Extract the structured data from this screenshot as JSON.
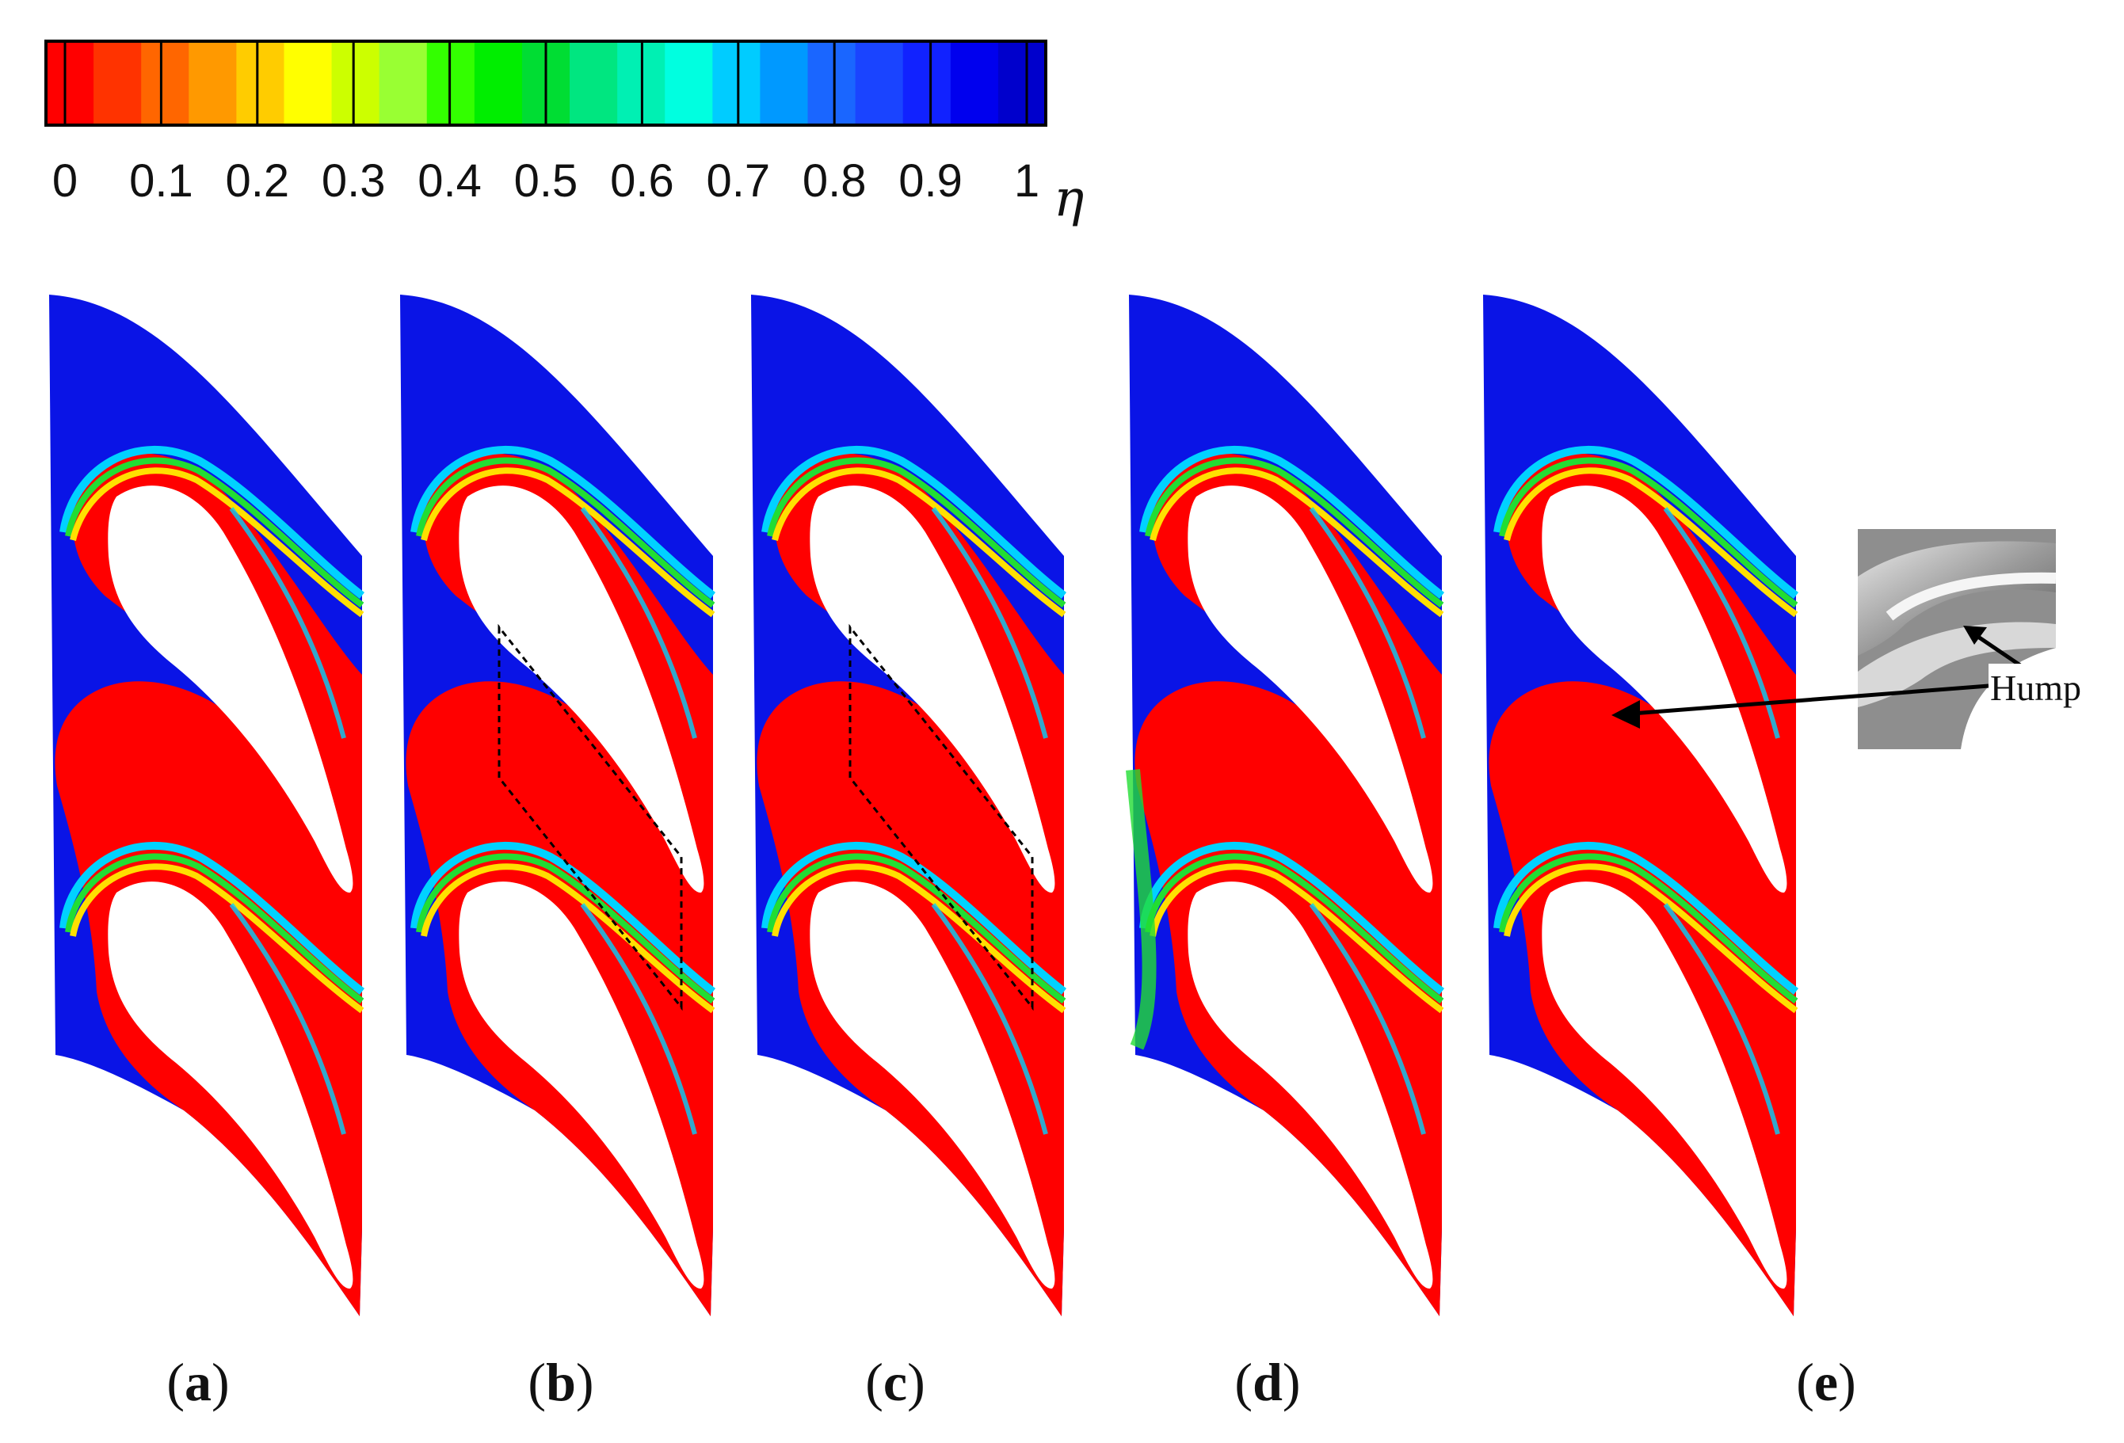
{
  "colorbar": {
    "symbol": "η",
    "ticks": [
      "0",
      "0.1",
      "0.2",
      "0.3",
      "0.4",
      "0.5",
      "0.6",
      "0.7",
      "0.8",
      "0.9",
      "1"
    ],
    "colors": [
      "#ff0000",
      "#ff3300",
      "#ff6600",
      "#ff9900",
      "#ffcc00",
      "#ffff00",
      "#ccff00",
      "#99ff33",
      "#33ff00",
      "#00ee00",
      "#00dd33",
      "#00e680",
      "#00f0b3",
      "#00ffe0",
      "#00ccff",
      "#0099ff",
      "#1a66ff",
      "#1a44ff",
      "#1122ff",
      "#0000ee",
      "#0000cc"
    ]
  },
  "panels": [
    {
      "label": "a",
      "dashed_box": false
    },
    {
      "label": "b",
      "dashed_box": true
    },
    {
      "label": "c",
      "dashed_box": true
    },
    {
      "label": "d",
      "dashed_box": false
    },
    {
      "label": "e",
      "dashed_box": false
    }
  ],
  "inset": {
    "annotation": "Hump"
  },
  "field_colors": {
    "high": "#0a14e6",
    "mid_cyan": "#00d2ff",
    "mid_green": "#22dd33",
    "mid_yellow": "#ffe000",
    "low": "#ff0000"
  }
}
